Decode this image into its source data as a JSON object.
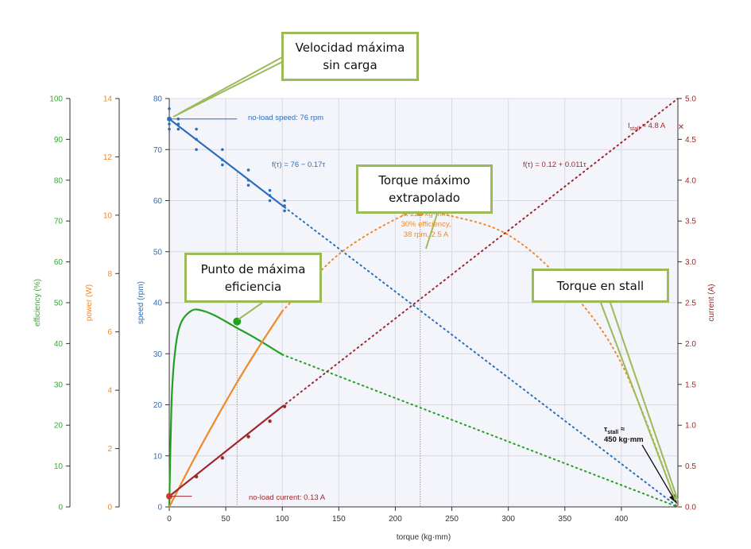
{
  "chart_data": {
    "type": "line",
    "xlabel": "torque (kg·mm)",
    "xlim": [
      0,
      450
    ],
    "xticks": [
      0,
      50,
      100,
      150,
      200,
      250,
      300,
      350,
      400
    ],
    "axes": [
      {
        "key": "speed",
        "label": "speed (rpm)",
        "color": "#2a6fbb",
        "lim": [
          0,
          80
        ],
        "ticks": [
          0,
          10,
          20,
          30,
          40,
          50,
          60,
          70,
          80
        ]
      },
      {
        "key": "power",
        "label": "power (W)",
        "color": "#ee8a2a",
        "lim": [
          0,
          14
        ],
        "ticks": [
          0,
          2,
          4,
          6,
          8,
          10,
          12,
          14
        ]
      },
      {
        "key": "efficiency",
        "label": "efficiency (%)",
        "color": "#3aa63a",
        "lim": [
          0,
          100
        ],
        "ticks": [
          0,
          10,
          20,
          30,
          40,
          50,
          60,
          70,
          80,
          90,
          100
        ]
      },
      {
        "key": "current",
        "label": "current (A)",
        "color": "#a0282a",
        "lim": [
          0,
          5
        ],
        "ticks": [
          "0.0",
          "0.5",
          "1.0",
          "1.5",
          "2.0",
          "2.5",
          "3.0",
          "3.5",
          "4.0",
          "4.5",
          "5.0"
        ]
      }
    ],
    "series": [
      {
        "axis": "speed",
        "color": "#2a6fbb",
        "x": [
          0,
          102
        ],
        "y": [
          76,
          58.7
        ],
        "extrapolated": {
          "x": [
            102,
            450
          ],
          "y": [
            58.7,
            0
          ]
        }
      },
      {
        "axis": "efficiency",
        "color": "#22a022",
        "x": [
          0,
          2,
          5,
          10,
          20,
          30,
          40,
          50,
          60,
          70,
          80,
          90,
          100
        ],
        "y": [
          0,
          25.2,
          37.7,
          44.8,
          48.1,
          48.0,
          46.9,
          45.4,
          43.8,
          42.3,
          40.7,
          39.0,
          37.3
        ],
        "extrapolated": {
          "x": [
            100,
            450
          ],
          "y": [
            37.3,
            0
          ]
        }
      },
      {
        "axis": "power",
        "color": "#ee8a2a",
        "x": [
          0,
          20,
          40,
          60,
          80,
          100
        ],
        "y": [
          0,
          1.5,
          2.92,
          4.27,
          5.53,
          6.71
        ],
        "extrapolated": {
          "x": [
            100,
            150,
            200,
            222,
            250,
            300,
            350,
            400,
            450
          ],
          "y": [
            6.71,
            8.66,
            9.86,
            10.1,
            9.97,
            9.32,
            7.63,
            4.92,
            0
          ]
        }
      },
      {
        "axis": "current",
        "color": "#a0282a",
        "x": [
          0,
          100
        ],
        "y": [
          0.13,
          1.23
        ],
        "extrapolated": {
          "x": [
            100,
            450
          ],
          "y": [
            1.23,
            5.0
          ]
        }
      }
    ],
    "measured": {
      "speed": [
        [
          0,
          76
        ],
        [
          0,
          74
        ],
        [
          0,
          78
        ],
        [
          0,
          75
        ],
        [
          8,
          76
        ],
        [
          8,
          74
        ],
        [
          8,
          75
        ],
        [
          24,
          72
        ],
        [
          24,
          70
        ],
        [
          24,
          74
        ],
        [
          47,
          68
        ],
        [
          47,
          70
        ],
        [
          47,
          67
        ],
        [
          70,
          64
        ],
        [
          70,
          66
        ],
        [
          70,
          63
        ],
        [
          89,
          62
        ],
        [
          89,
          60
        ],
        [
          89,
          61
        ],
        [
          102,
          58
        ],
        [
          102,
          60
        ],
        [
          102,
          59
        ]
      ],
      "current": [
        [
          0,
          0.13
        ],
        [
          24,
          0.37
        ],
        [
          47,
          0.6
        ],
        [
          70,
          0.86
        ],
        [
          89,
          1.05
        ],
        [
          102,
          1.23
        ]
      ]
    },
    "annotations": {
      "no_load_speed": "no-load speed: 76 rpm",
      "speed_fit": "f(τ) = 76 − 0.17τ",
      "current_fit": "f(τ) = 0.12 + 0.011τ",
      "stall_current": "I",
      "stall_current_sub": "stall",
      "stall_current_val": " ≈ 4.8 A",
      "max_power_lines": [
        "at 220 kg·mm,",
        "30% efficiency,",
        "38 rpm, 2.5 A"
      ],
      "no_load_current": "no-load current: 0.13 A",
      "stall_torque_sym": "τ",
      "stall_torque_sub": "stall",
      "stall_torque_eq": " ≈",
      "stall_torque_val": "450 kg·mm"
    },
    "grid": true
  },
  "callouts": {
    "no_load": "Velocidad máxima\nsin carga",
    "max_torque": "Torque máximo\nextrapolado",
    "max_eff": "Punto de máxima\neficiencia",
    "stall": "Torque en stall"
  }
}
